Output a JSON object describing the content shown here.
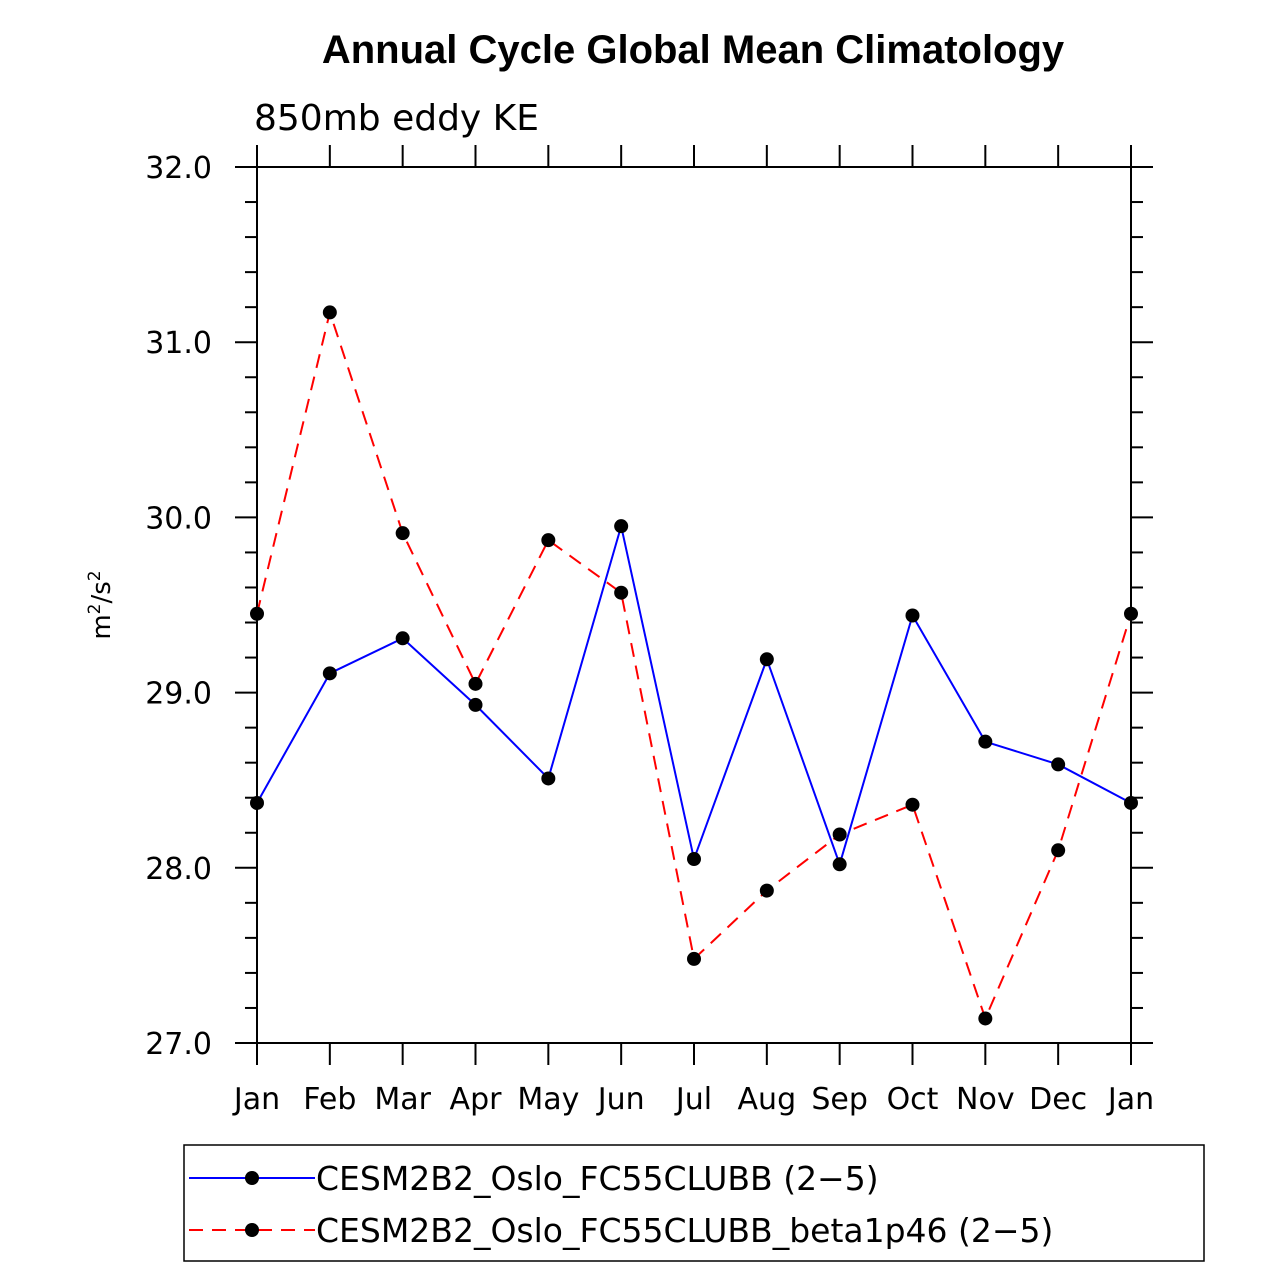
{
  "chart_data": {
    "type": "line",
    "title": "Annual Cycle Global Mean Climatology",
    "subtitle": "850mb eddy KE",
    "ylabel_base": "m",
    "ylabel_exp1": "2",
    "ylabel_mid": "/s",
    "ylabel_exp2": "2",
    "xlabel": "",
    "ylim": [
      27.0,
      32.0
    ],
    "yticks": [
      27.0,
      28.0,
      29.0,
      30.0,
      31.0,
      32.0
    ],
    "ytick_labels": [
      "27.0",
      "28.0",
      "29.0",
      "30.0",
      "31.0",
      "32.0"
    ],
    "categories": [
      "Jan",
      "Feb",
      "Mar",
      "Apr",
      "May",
      "Jun",
      "Jul",
      "Aug",
      "Sep",
      "Oct",
      "Nov",
      "Dec",
      "Jan"
    ],
    "series": [
      {
        "name": "CESM2B2_Oslo_FC55CLUBB (2−5)",
        "color": "#0000ff",
        "dash": "solid",
        "values": [
          28.37,
          29.11,
          29.31,
          28.93,
          28.51,
          29.95,
          28.05,
          29.19,
          28.02,
          29.44,
          28.72,
          28.59,
          28.37
        ]
      },
      {
        "name": "CESM2B2_Oslo_FC55CLUBB_beta1p46 (2−5)",
        "color": "#ff0000",
        "dash": "dashed",
        "values": [
          29.45,
          31.17,
          29.91,
          29.05,
          29.87,
          29.57,
          27.48,
          27.87,
          28.19,
          28.36,
          27.14,
          28.1,
          29.45
        ]
      }
    ],
    "legend_position": "bottom"
  }
}
